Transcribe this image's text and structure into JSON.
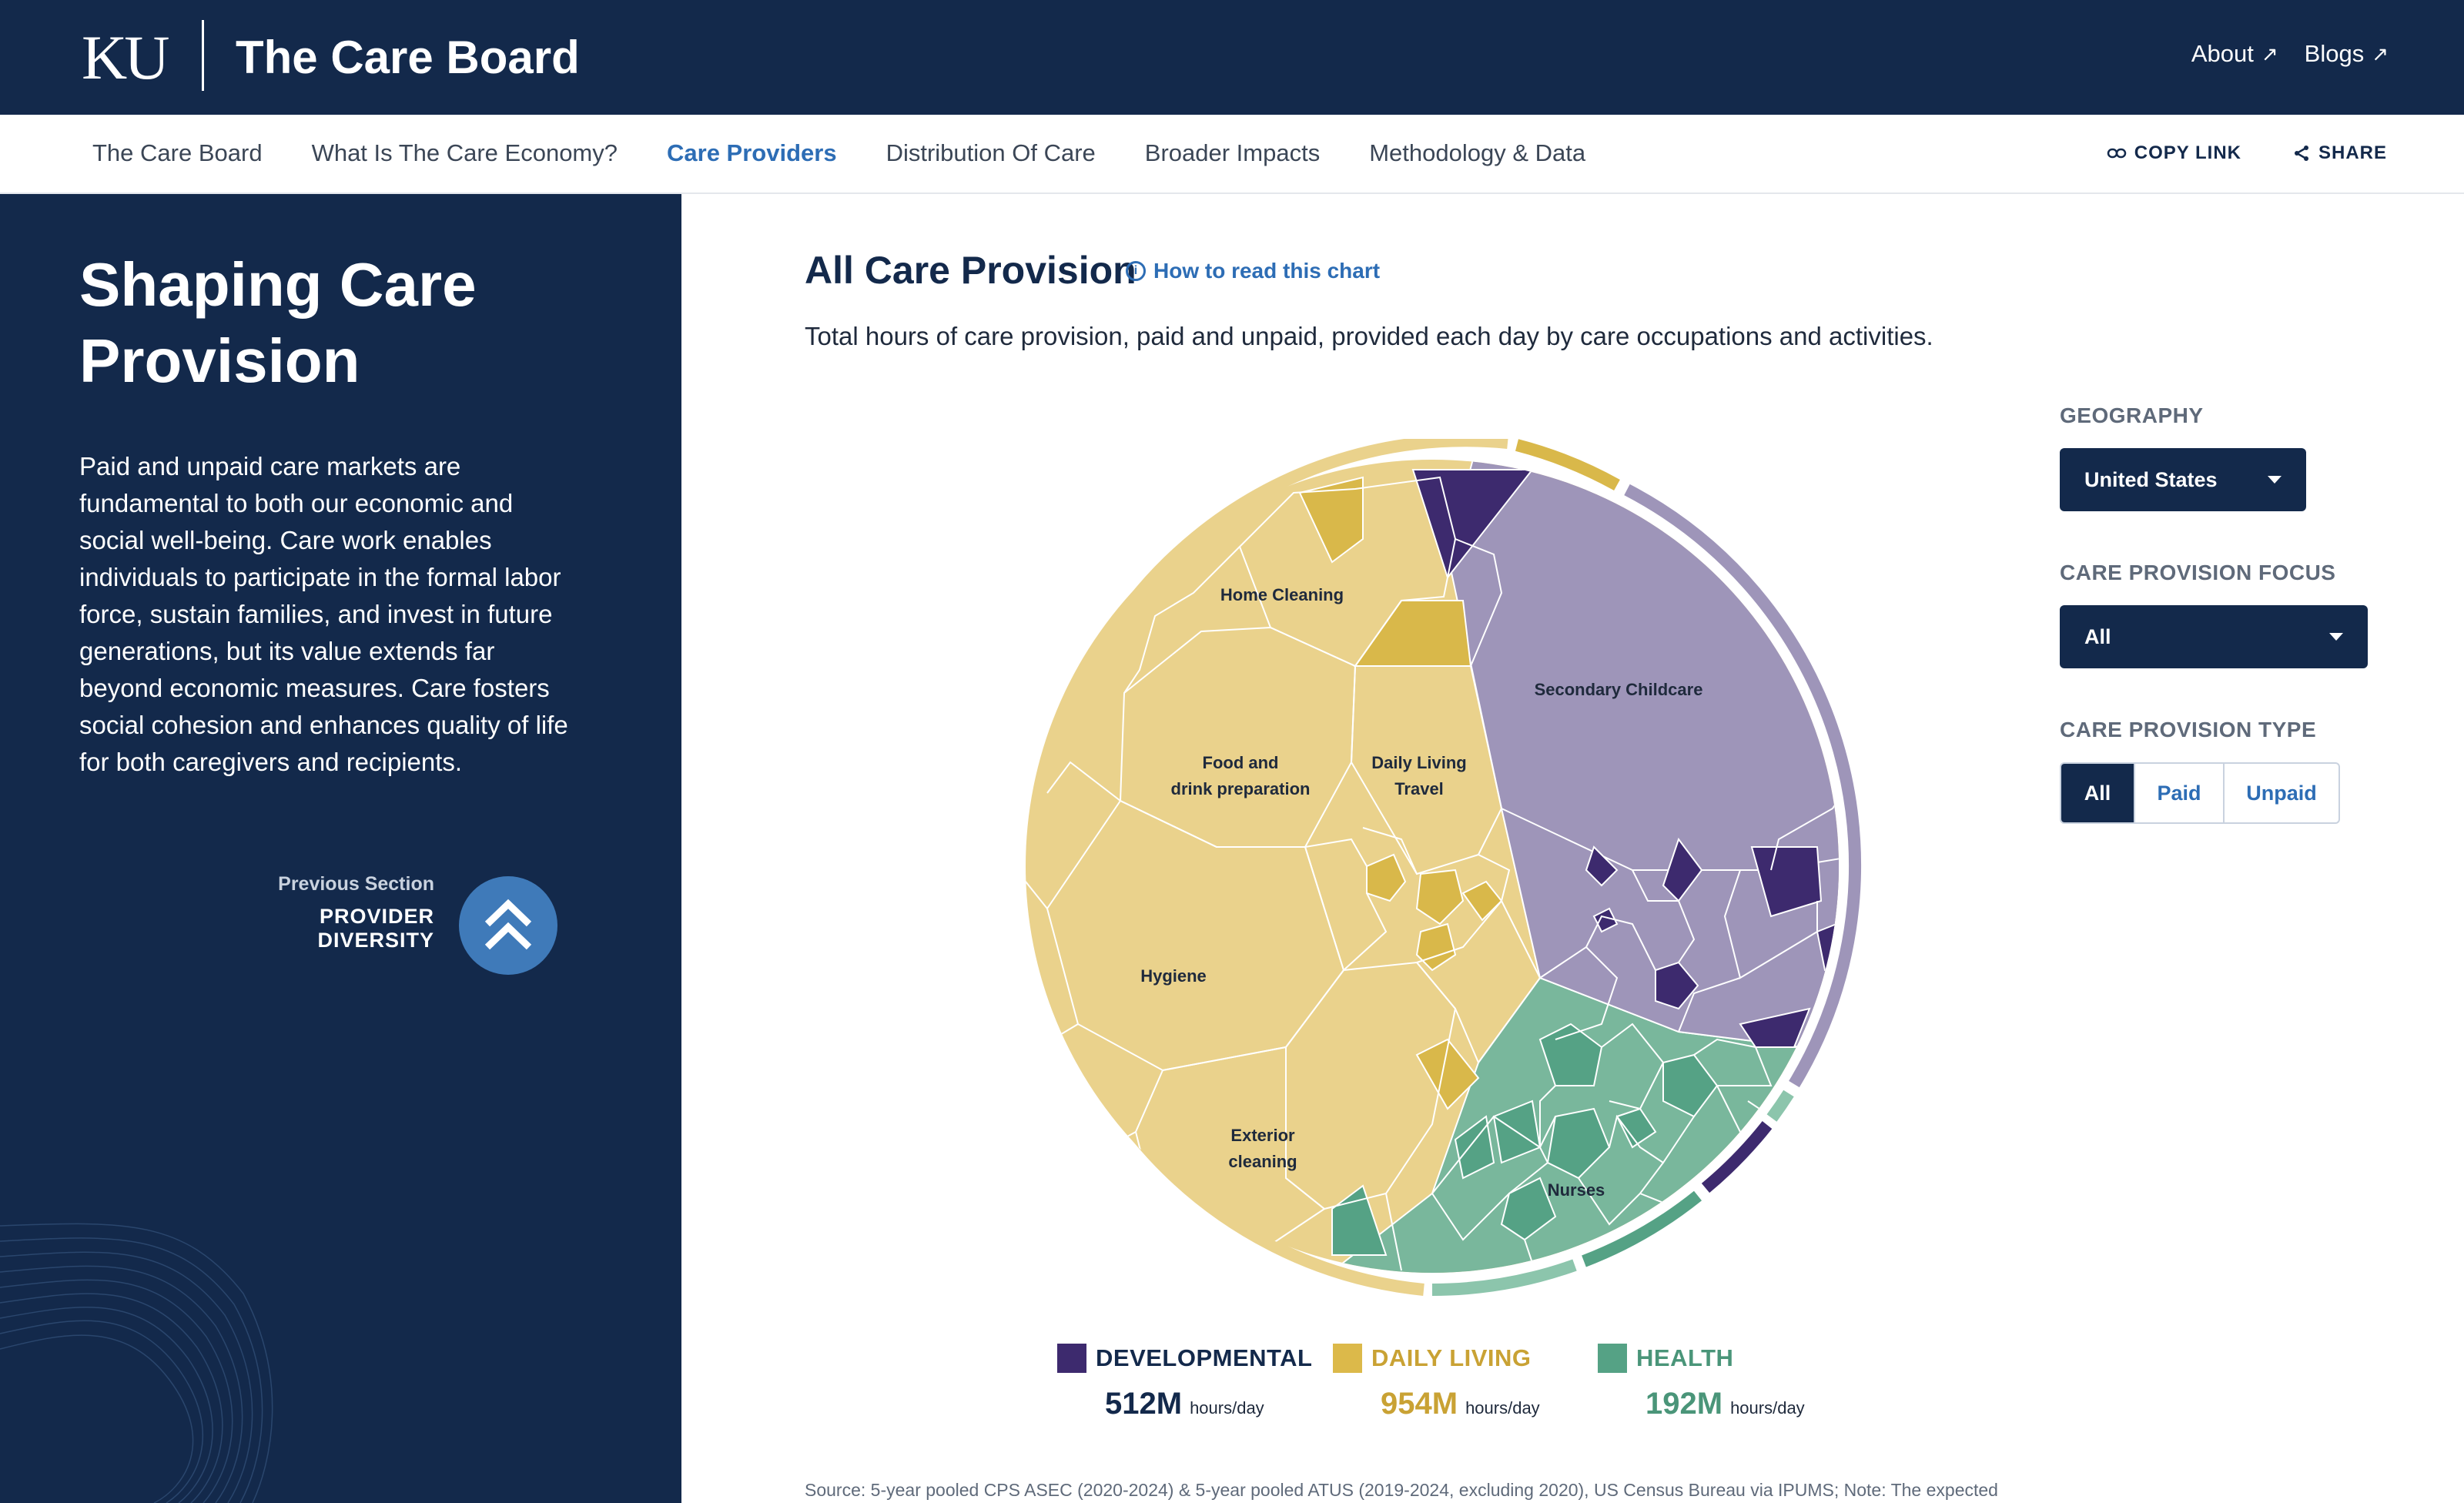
{
  "header": {
    "logo": "KU",
    "site_title": "The Care Board",
    "links": [
      {
        "label": "About"
      },
      {
        "label": "Blogs"
      }
    ]
  },
  "nav": {
    "items": [
      "The Care Board",
      "What Is The Care Economy?",
      "Care Providers",
      "Distribution Of Care",
      "Broader Impacts",
      "Methodology & Data"
    ],
    "active": "Care Providers",
    "copy_link": "COPY LINK",
    "share": "SHARE"
  },
  "sidebar": {
    "title": "Shaping Care Provision",
    "body": "Paid and unpaid care markets are fundamental to both our economic and social well-being. Care work enables individuals to participate in the formal labor force, sustain families, and invest in future generations, but its value extends far beyond economic measures. Care fosters social cohesion and enhances quality of life for both caregivers and recipients.",
    "prev_label": "Previous Section",
    "prev_name": "PROVIDER DIVERSITY"
  },
  "main": {
    "title": "All Care Provision",
    "how_to": "How to read this chart",
    "subtitle": "Total hours of care provision, paid and unpaid, provided each day by care occupations and activities.",
    "source": "Source: 5-year pooled CPS ASEC (2020-2024) & 5-year pooled ATUS (2019-2024, excluding 2020), US Census Bureau via IPUMS; Note: The expected"
  },
  "controls": {
    "geography_label": "GEOGRAPHY",
    "geography_value": "United States",
    "focus_label": "CARE PROVISION FOCUS",
    "focus_value": "All",
    "type_label": "CARE PROVISION TYPE",
    "type_options": [
      "All",
      "Paid",
      "Unpaid"
    ],
    "type_selected": "All"
  },
  "colors": {
    "navy": "#13294b",
    "developmental": "#3d2a6e",
    "daily_living": "#ead28c",
    "health": "#55a285",
    "accent": "#2d6db5"
  },
  "chart_data": {
    "type": "voronoi-treemap",
    "title": "All Care Provision",
    "labels": {
      "home_cleaning": "Home Cleaning",
      "food_l1": "Food and",
      "food_l2": "drink preparation",
      "daily_l1": "Daily Living",
      "daily_l2": "Travel",
      "hygiene": "Hygiene",
      "exterior_l1": "Exterior",
      "exterior_l2": "cleaning",
      "secondary_childcare": "Secondary Childcare",
      "nurses": "Nurses"
    },
    "legend": [
      {
        "name": "DEVELOPMENTAL",
        "value": "512M",
        "unit": "hours/day",
        "color": "#3d2a6e",
        "text_color": "#13294b"
      },
      {
        "name": "DAILY LIVING",
        "value": "954M",
        "unit": "hours/day",
        "color": "#dcb94a",
        "text_color": "#c9a234"
      },
      {
        "name": "HEALTH",
        "value": "192M",
        "unit": "hours/day",
        "color": "#55a285",
        "text_color": "#4a9579"
      }
    ],
    "series": [
      {
        "name": "Developmental",
        "hours_per_day_millions": 512
      },
      {
        "name": "Daily Living",
        "hours_per_day_millions": 954
      },
      {
        "name": "Health",
        "hours_per_day_millions": 192
      }
    ]
  }
}
